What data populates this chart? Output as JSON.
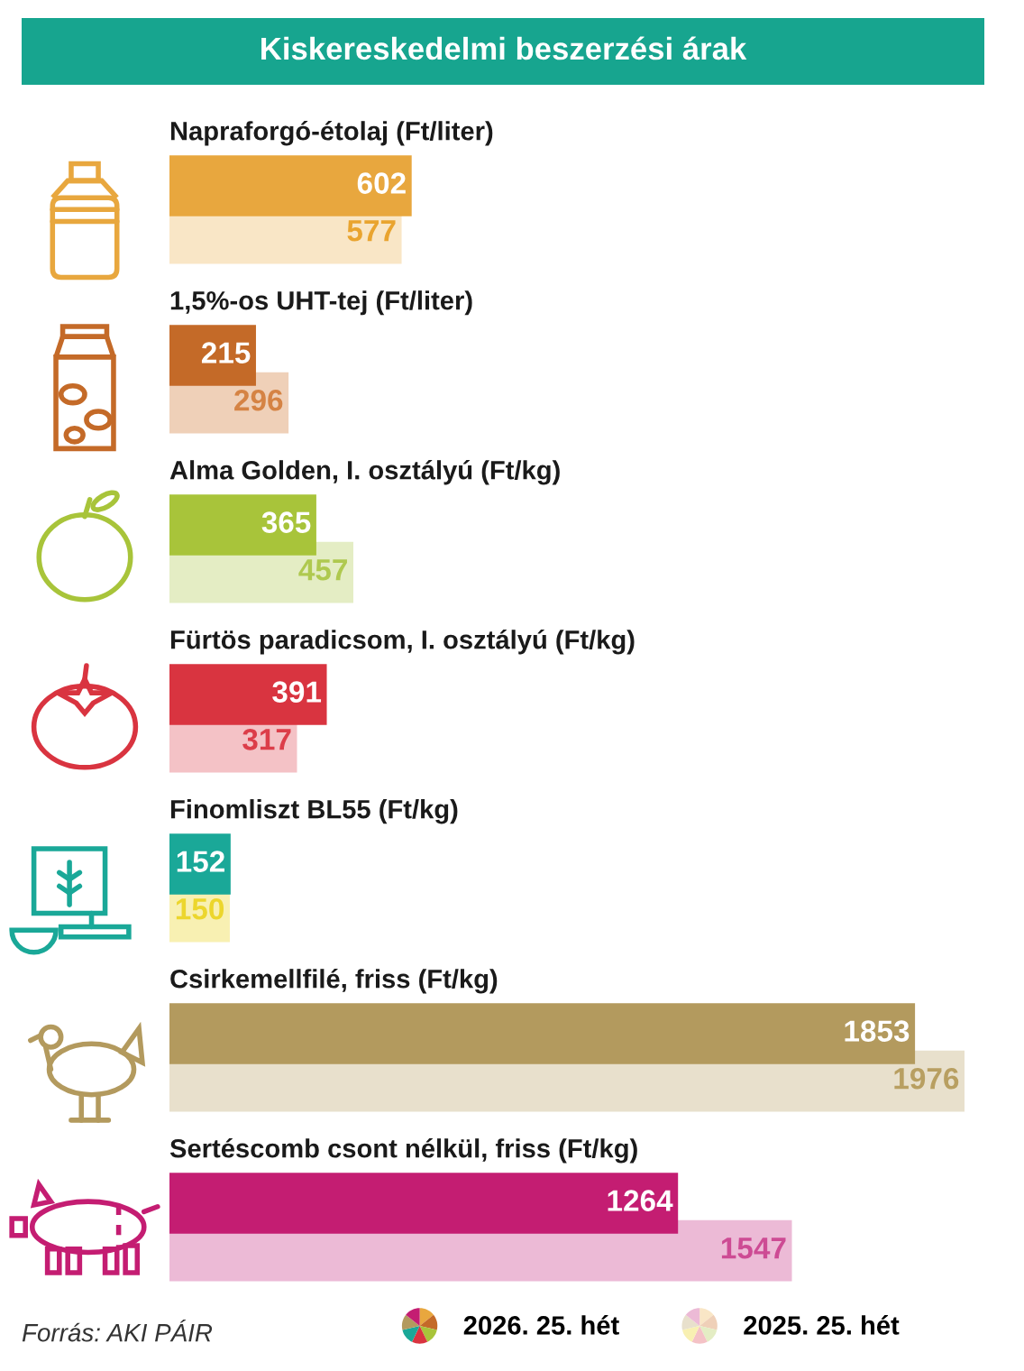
{
  "chart_data": {
    "type": "bar",
    "orientation": "horizontal",
    "title": "Kiskereskedelmi beszerzési árak",
    "categories": [
      "Napraforgó-étolaj (Ft/liter)",
      "1,5%-os UHT-tej (Ft/liter)",
      "Alma Golden, I. osztályú (Ft/kg)",
      "Fürtös paradicsom, I. osztályú (Ft/kg)",
      "Finomliszt BL55 (Ft/kg)",
      "Csirkemellfilé, friss (Ft/kg)",
      "Sertéscomb csont nélkül, friss (Ft/kg)"
    ],
    "series": [
      {
        "name": "2026. 25. hét",
        "colors": [
          "#e8a73e",
          "#c46a28",
          "#a8c43a",
          "#d93440",
          "#1aa898",
          "#b39a5e",
          "#c41d72"
        ],
        "values": [
          602,
          215,
          365,
          391,
          152,
          1853,
          1264
        ]
      },
      {
        "name": "2025. 25. hét",
        "colors": [
          "#f9e6c6",
          "#efd0b8",
          "#e4edc4",
          "#f4c2c6",
          "#f8f0b2",
          "#e8e0cc",
          "#ecbad6"
        ],
        "values": [
          577,
          296,
          457,
          317,
          150,
          1976,
          1547
        ]
      }
    ],
    "data_labels": true,
    "legend": "bottom right",
    "annotations": [
      "Forrás: AKI PÁIR"
    ]
  }
}
